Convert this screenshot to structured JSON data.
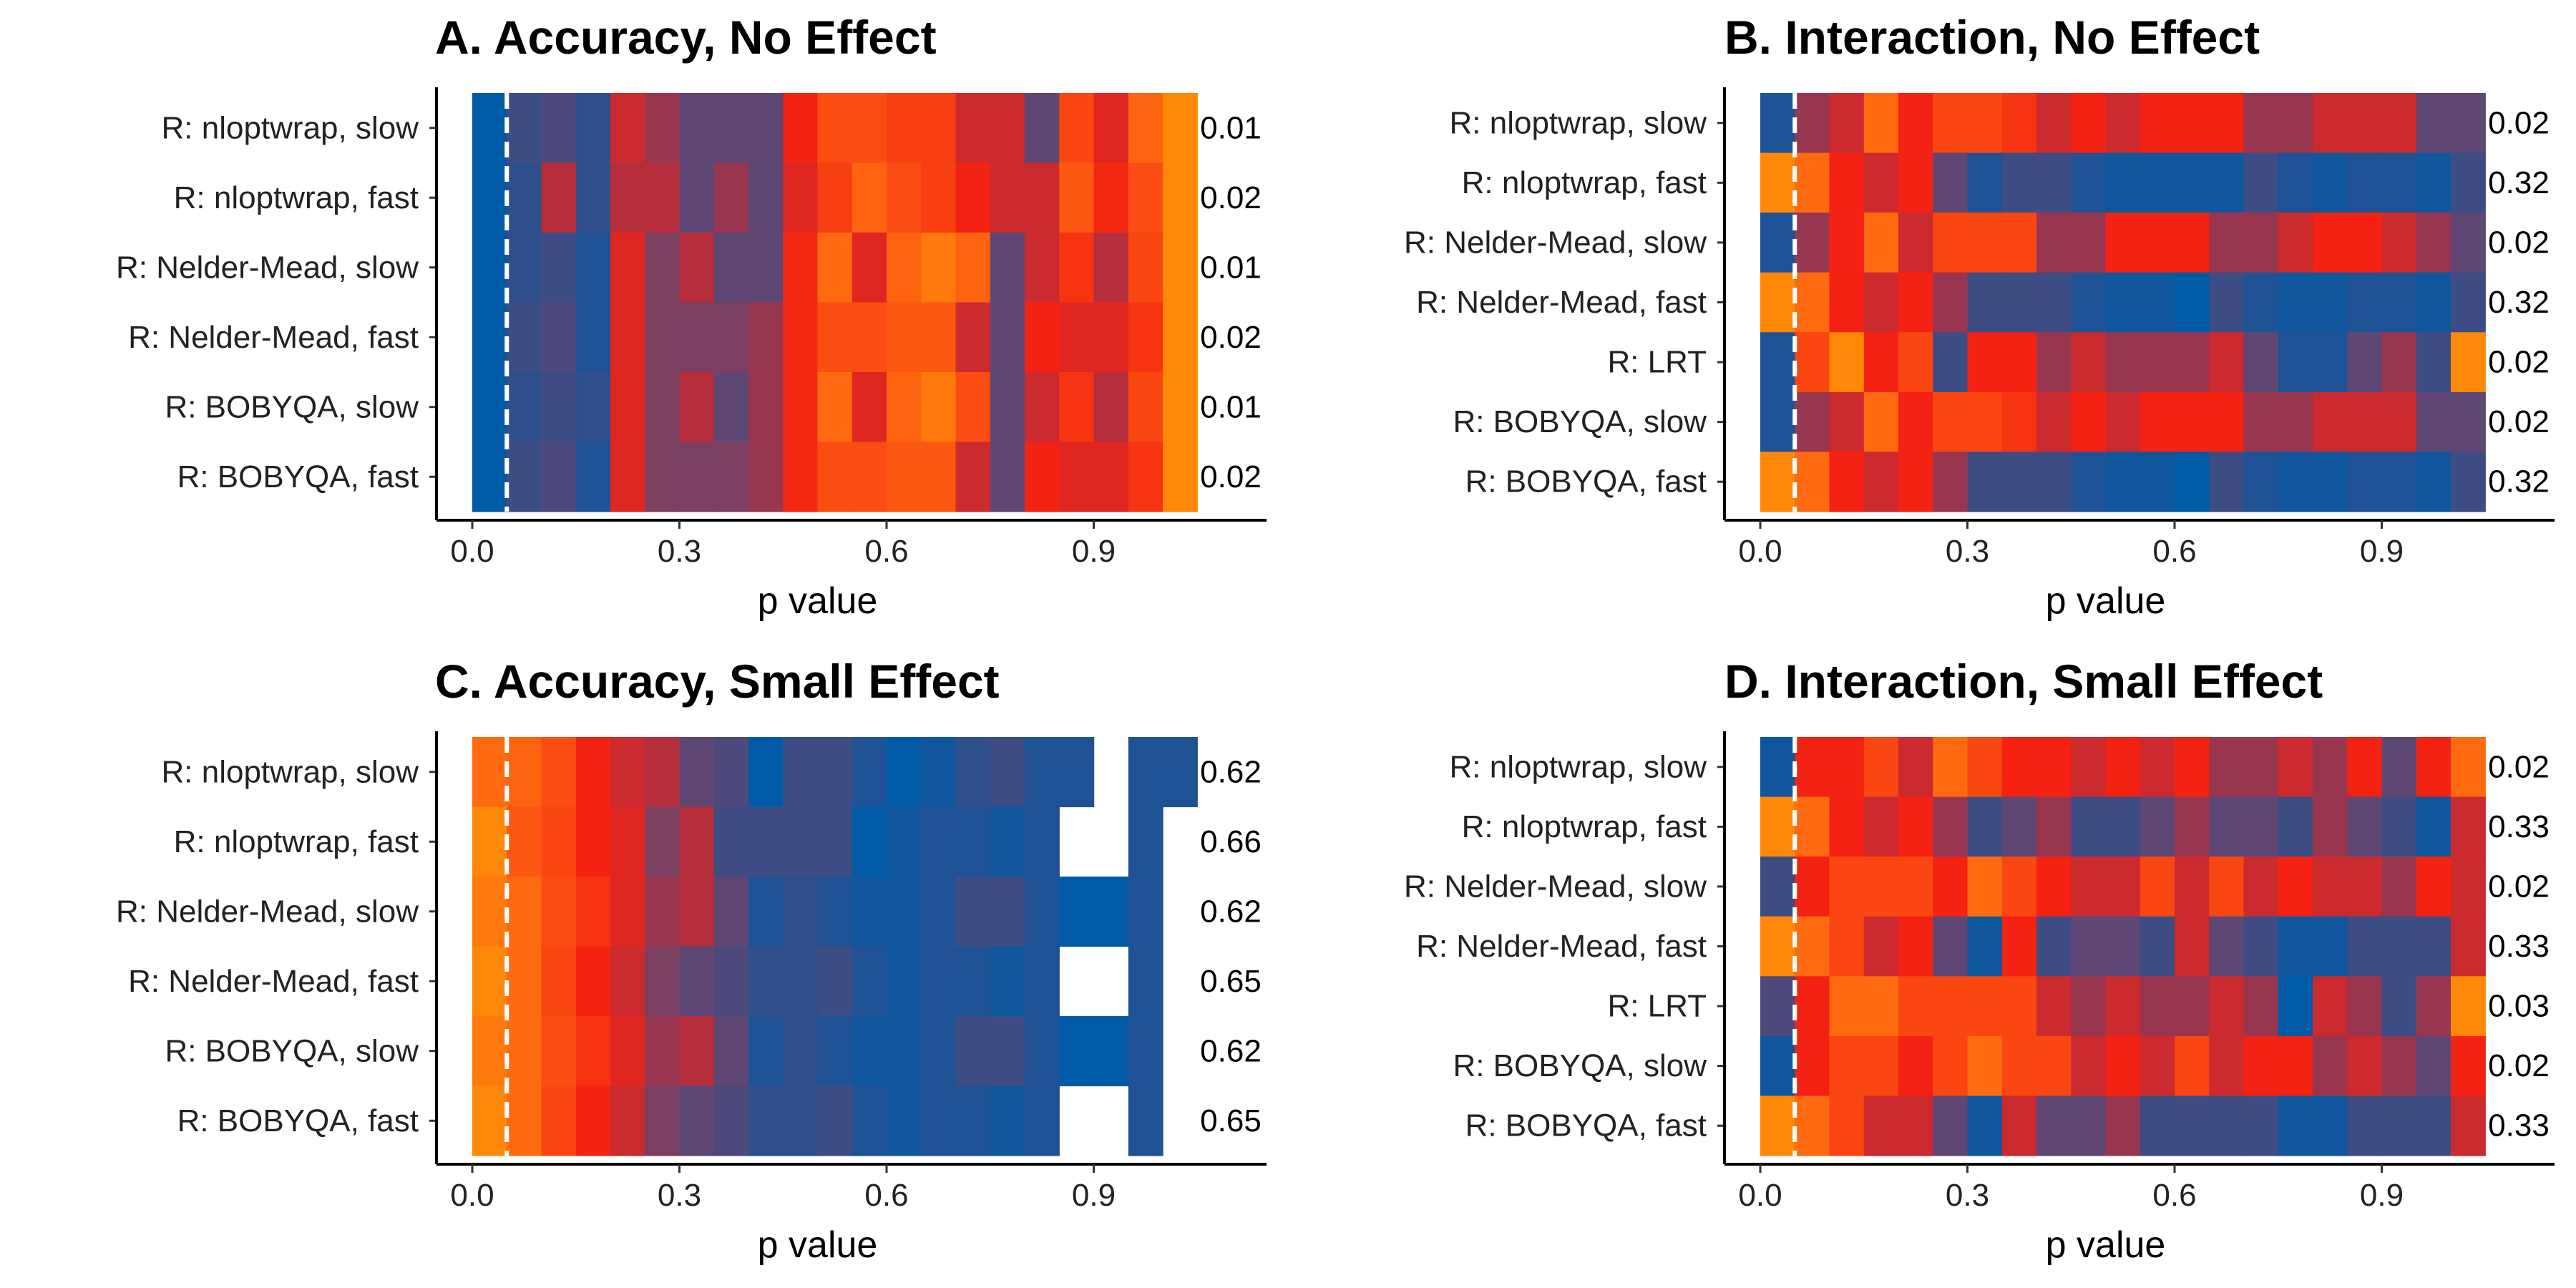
{
  "chart_data": [
    {
      "type": "heatmap",
      "title": "A. Accuracy, No Effect",
      "xlabel": "p value",
      "xlim": [
        0,
        1
      ],
      "x_ticks": [
        0.0,
        0.3,
        0.6,
        0.9
      ],
      "x_tick_labels": [
        "0.0",
        "0.3",
        "0.6",
        "0.9"
      ],
      "bin_width": 0.05,
      "reference_line": 0.05,
      "rows": [
        "R: nloptwrap, slow",
        "R: nloptwrap, fast",
        "R: Nelder-Mead, slow",
        "R: Nelder-Mead, fast",
        "R: BOBYQA, slow",
        "R: BOBYQA, fast"
      ],
      "row_values": [
        "0.01",
        "0.02",
        "0.01",
        "0.02",
        "0.01",
        "0.02"
      ],
      "cells": [
        [
          0.0,
          0.2,
          0.25,
          0.15,
          0.5,
          0.4,
          0.3,
          0.3,
          0.3,
          0.6,
          0.72,
          0.72,
          0.68,
          0.68,
          0.5,
          0.5,
          0.3,
          0.7,
          0.55,
          0.78,
          0.9
        ],
        [
          0.0,
          0.15,
          0.45,
          0.15,
          0.45,
          0.45,
          0.3,
          0.4,
          0.3,
          0.55,
          0.68,
          0.78,
          0.72,
          0.68,
          0.6,
          0.5,
          0.5,
          0.75,
          0.62,
          0.72,
          0.9
        ],
        [
          0.0,
          0.15,
          0.2,
          0.1,
          0.55,
          0.35,
          0.45,
          0.3,
          0.3,
          0.62,
          0.8,
          0.55,
          0.78,
          0.85,
          0.78,
          0.3,
          0.5,
          0.65,
          0.45,
          0.7,
          0.9
        ],
        [
          0.0,
          0.2,
          0.25,
          0.1,
          0.55,
          0.35,
          0.35,
          0.35,
          0.4,
          0.62,
          0.72,
          0.72,
          0.75,
          0.75,
          0.5,
          0.3,
          0.6,
          0.55,
          0.55,
          0.65,
          0.9
        ],
        [
          0.0,
          0.15,
          0.2,
          0.15,
          0.55,
          0.35,
          0.45,
          0.3,
          0.4,
          0.62,
          0.8,
          0.55,
          0.78,
          0.85,
          0.72,
          0.3,
          0.5,
          0.65,
          0.45,
          0.7,
          0.9
        ],
        [
          0.0,
          0.2,
          0.25,
          0.1,
          0.55,
          0.35,
          0.35,
          0.35,
          0.4,
          0.62,
          0.72,
          0.72,
          0.75,
          0.75,
          0.5,
          0.3,
          0.6,
          0.55,
          0.55,
          0.65,
          0.9
        ]
      ]
    },
    {
      "type": "heatmap",
      "title": "B. Interaction, No Effect",
      "xlabel": "p value",
      "xlim": [
        0,
        1
      ],
      "x_ticks": [
        0.0,
        0.3,
        0.6,
        0.9
      ],
      "x_tick_labels": [
        "0.0",
        "0.3",
        "0.6",
        "0.9"
      ],
      "bin_width": 0.05,
      "reference_line": 0.05,
      "rows": [
        "R: nloptwrap, slow",
        "R: nloptwrap, fast",
        "R: Nelder-Mead, slow",
        "R: Nelder-Mead, fast",
        "R: LRT",
        "R: BOBYQA, slow",
        "R: BOBYQA, fast"
      ],
      "row_values": [
        "0.02",
        "0.32",
        "0.02",
        "0.32",
        "0.02",
        "0.02",
        "0.32"
      ],
      "cells": [
        [
          0.1,
          0.4,
          0.5,
          0.8,
          0.6,
          0.7,
          0.7,
          0.65,
          0.5,
          0.6,
          0.5,
          0.6,
          0.6,
          0.6,
          0.4,
          0.4,
          0.5,
          0.5,
          0.5,
          0.3,
          0.3
        ],
        [
          0.9,
          0.8,
          0.6,
          0.5,
          0.6,
          0.3,
          0.1,
          0.2,
          0.2,
          0.1,
          0.05,
          0.05,
          0.05,
          0.05,
          0.2,
          0.1,
          0.05,
          0.1,
          0.1,
          0.05,
          0.2
        ],
        [
          0.1,
          0.4,
          0.6,
          0.8,
          0.5,
          0.7,
          0.7,
          0.7,
          0.4,
          0.4,
          0.6,
          0.6,
          0.6,
          0.4,
          0.4,
          0.5,
          0.6,
          0.6,
          0.5,
          0.4,
          0.3
        ],
        [
          0.9,
          0.8,
          0.6,
          0.5,
          0.6,
          0.4,
          0.2,
          0.2,
          0.2,
          0.1,
          0.05,
          0.05,
          0.0,
          0.2,
          0.1,
          0.05,
          0.05,
          0.1,
          0.1,
          0.05,
          0.2
        ],
        [
          0.1,
          0.7,
          0.9,
          0.6,
          0.7,
          0.2,
          0.6,
          0.6,
          0.4,
          0.5,
          0.4,
          0.4,
          0.4,
          0.5,
          0.3,
          0.1,
          0.1,
          0.3,
          0.4,
          0.2,
          0.9
        ],
        [
          0.1,
          0.4,
          0.5,
          0.8,
          0.6,
          0.7,
          0.7,
          0.65,
          0.5,
          0.6,
          0.5,
          0.6,
          0.6,
          0.6,
          0.4,
          0.4,
          0.5,
          0.5,
          0.5,
          0.3,
          0.3
        ],
        [
          0.9,
          0.8,
          0.6,
          0.5,
          0.6,
          0.4,
          0.2,
          0.2,
          0.2,
          0.1,
          0.05,
          0.05,
          0.0,
          0.2,
          0.1,
          0.05,
          0.05,
          0.1,
          0.1,
          0.05,
          0.2
        ]
      ]
    },
    {
      "type": "heatmap",
      "title": "C. Accuracy, Small Effect",
      "xlabel": "p value",
      "xlim": [
        0,
        1
      ],
      "x_ticks": [
        0.0,
        0.3,
        0.6,
        0.9
      ],
      "x_tick_labels": [
        "0.0",
        "0.3",
        "0.6",
        "0.9"
      ],
      "bin_width": 0.05,
      "reference_line": 0.05,
      "rows": [
        "R: nloptwrap, slow",
        "R: nloptwrap, fast",
        "R: Nelder-Mead, slow",
        "R: Nelder-Mead, fast",
        "R: BOBYQA, slow",
        "R: BOBYQA, fast"
      ],
      "row_values": [
        "0.62",
        "0.66",
        "0.62",
        "0.65",
        "0.62",
        "0.65"
      ],
      "cells": [
        [
          0.8,
          0.78,
          0.72,
          0.6,
          0.5,
          0.45,
          0.3,
          0.25,
          0.0,
          0.2,
          0.2,
          0.1,
          0.0,
          0.05,
          0.15,
          0.2,
          0.1,
          0.1,
          null,
          0.1,
          0.1
        ],
        [
          0.9,
          0.75,
          0.7,
          0.6,
          0.55,
          0.35,
          0.45,
          0.2,
          0.2,
          0.2,
          0.2,
          0.0,
          0.05,
          0.1,
          0.1,
          0.05,
          0.1,
          null,
          null,
          0.1,
          null
        ],
        [
          0.85,
          0.8,
          0.72,
          0.65,
          0.55,
          0.4,
          0.45,
          0.3,
          0.1,
          0.15,
          0.1,
          0.05,
          0.05,
          0.1,
          0.2,
          0.2,
          0.1,
          0.0,
          0.0,
          0.1,
          null
        ],
        [
          0.9,
          0.8,
          0.7,
          0.6,
          0.5,
          0.35,
          0.3,
          0.25,
          0.15,
          0.15,
          0.2,
          0.1,
          0.05,
          0.1,
          0.1,
          0.05,
          0.1,
          null,
          null,
          0.1,
          null
        ],
        [
          0.85,
          0.8,
          0.72,
          0.65,
          0.55,
          0.4,
          0.45,
          0.3,
          0.1,
          0.15,
          0.1,
          0.05,
          0.05,
          0.1,
          0.2,
          0.2,
          0.1,
          0.0,
          0.0,
          0.1,
          null
        ],
        [
          0.9,
          0.8,
          0.7,
          0.6,
          0.5,
          0.35,
          0.3,
          0.25,
          0.15,
          0.15,
          0.2,
          0.1,
          0.05,
          0.1,
          0.1,
          0.05,
          0.1,
          null,
          null,
          0.1,
          null
        ]
      ]
    },
    {
      "type": "heatmap",
      "title": "D. Interaction, Small Effect",
      "xlabel": "p value",
      "xlim": [
        0,
        1
      ],
      "x_ticks": [
        0.0,
        0.3,
        0.6,
        0.9
      ],
      "x_tick_labels": [
        "0.0",
        "0.3",
        "0.6",
        "0.9"
      ],
      "bin_width": 0.05,
      "reference_line": 0.05,
      "rows": [
        "R: nloptwrap, slow",
        "R: nloptwrap, fast",
        "R: Nelder-Mead, slow",
        "R: Nelder-Mead, fast",
        "R: LRT",
        "R: BOBYQA, slow",
        "R: BOBYQA, fast"
      ],
      "row_values": [
        "0.02",
        "0.33",
        "0.02",
        "0.33",
        "0.03",
        "0.02",
        "0.33"
      ],
      "cells": [
        [
          0.05,
          0.6,
          0.6,
          0.7,
          0.5,
          0.8,
          0.7,
          0.6,
          0.6,
          0.5,
          0.6,
          0.5,
          0.6,
          0.4,
          0.4,
          0.5,
          0.4,
          0.6,
          0.3,
          0.6,
          0.8
        ],
        [
          0.9,
          0.8,
          0.6,
          0.5,
          0.6,
          0.4,
          0.2,
          0.3,
          0.4,
          0.2,
          0.2,
          0.3,
          0.4,
          0.3,
          0.3,
          0.2,
          0.4,
          0.3,
          0.2,
          0.05,
          0.5
        ],
        [
          0.2,
          0.6,
          0.7,
          0.7,
          0.7,
          0.6,
          0.8,
          0.7,
          0.6,
          0.5,
          0.5,
          0.7,
          0.5,
          0.7,
          0.5,
          0.6,
          0.5,
          0.5,
          0.4,
          0.6,
          0.5
        ],
        [
          0.9,
          0.8,
          0.7,
          0.5,
          0.6,
          0.3,
          0.05,
          0.6,
          0.2,
          0.3,
          0.3,
          0.2,
          0.5,
          0.3,
          0.2,
          0.05,
          0.05,
          0.2,
          0.2,
          0.2,
          0.5
        ],
        [
          0.25,
          0.6,
          0.8,
          0.8,
          0.7,
          0.7,
          0.7,
          0.7,
          0.5,
          0.4,
          0.5,
          0.4,
          0.4,
          0.5,
          0.4,
          0.0,
          0.5,
          0.4,
          0.2,
          0.4,
          0.9
        ],
        [
          0.05,
          0.6,
          0.7,
          0.7,
          0.6,
          0.7,
          0.8,
          0.7,
          0.7,
          0.5,
          0.6,
          0.5,
          0.7,
          0.5,
          0.6,
          0.6,
          0.4,
          0.5,
          0.4,
          0.3,
          0.6
        ],
        [
          0.9,
          0.8,
          0.7,
          0.5,
          0.5,
          0.3,
          0.05,
          0.5,
          0.3,
          0.3,
          0.4,
          0.2,
          0.2,
          0.2,
          0.2,
          0.05,
          0.05,
          0.2,
          0.2,
          0.2,
          0.5
        ]
      ]
    }
  ]
}
